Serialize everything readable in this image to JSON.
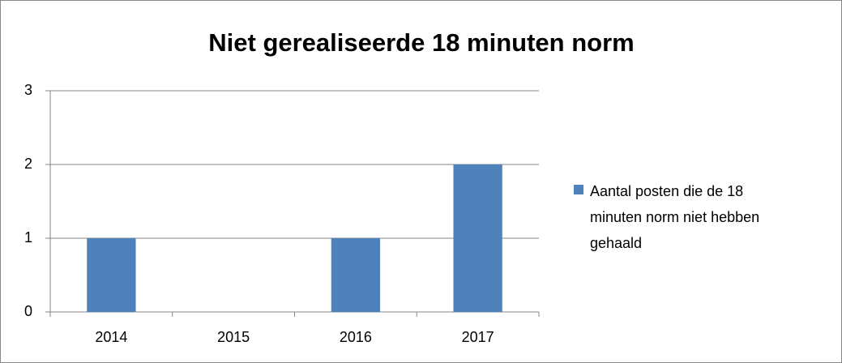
{
  "chart_data": {
    "type": "bar",
    "title": "Niet gerealiseerde 18 minuten norm",
    "categories": [
      "2014",
      "2015",
      "2016",
      "2017"
    ],
    "series": [
      {
        "name": "Aantal posten die de 18 minuten norm niet hebben gehaald",
        "color": "#4f81bd",
        "values": [
          1,
          0,
          1,
          2
        ]
      }
    ],
    "ylim": [
      0,
      3
    ],
    "yticks": [
      0,
      1,
      2,
      3
    ],
    "grid": true,
    "legend": "right"
  }
}
